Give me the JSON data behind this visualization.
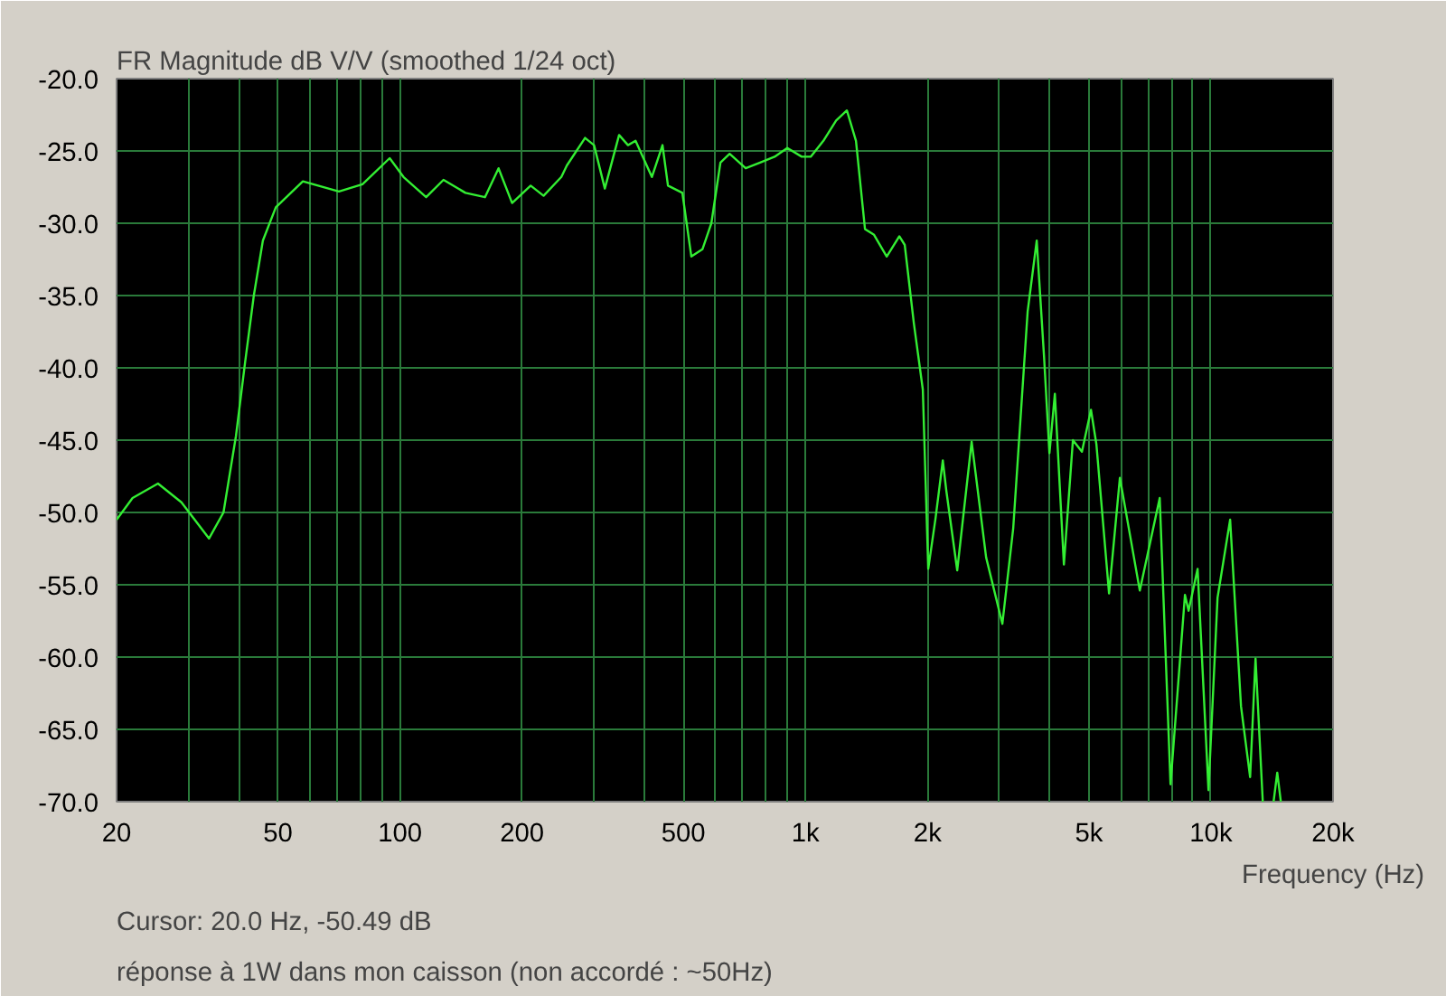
{
  "chart_data": {
    "type": "line",
    "title": "FR Magnitude dB V/V (smoothed 1/24 oct)",
    "xlabel": "Frequency (Hz)",
    "annotations": [
      "Cursor: 20.0 Hz, -50.49 dB",
      "réponse à 1W dans mon caisson (non accordé : ~50Hz)"
    ],
    "log": "x",
    "grid": true,
    "line_style": "solid",
    "marker": "none",
    "xlim": [
      20,
      20000
    ],
    "ylim": [
      -70,
      -20
    ],
    "xticks": [
      {
        "value": 20,
        "label": "20"
      },
      {
        "value": 30,
        "label": null
      },
      {
        "value": 40,
        "label": null
      },
      {
        "value": 50,
        "label": "50"
      },
      {
        "value": 60,
        "label": null
      },
      {
        "value": 70,
        "label": null
      },
      {
        "value": 80,
        "label": null
      },
      {
        "value": 90,
        "label": null
      },
      {
        "value": 100,
        "label": "100"
      },
      {
        "value": 200,
        "label": "200"
      },
      {
        "value": 300,
        "label": null
      },
      {
        "value": 400,
        "label": null
      },
      {
        "value": 500,
        "label": "500"
      },
      {
        "value": 600,
        "label": null
      },
      {
        "value": 700,
        "label": null
      },
      {
        "value": 800,
        "label": null
      },
      {
        "value": 900,
        "label": null
      },
      {
        "value": 1000,
        "label": "1k"
      },
      {
        "value": 2000,
        "label": "2k"
      },
      {
        "value": 3000,
        "label": null
      },
      {
        "value": 4000,
        "label": null
      },
      {
        "value": 5000,
        "label": "5k"
      },
      {
        "value": 6000,
        "label": null
      },
      {
        "value": 7000,
        "label": null
      },
      {
        "value": 8000,
        "label": null
      },
      {
        "value": 9000,
        "label": null
      },
      {
        "value": 10000,
        "label": "10k"
      },
      {
        "value": 20000,
        "label": "20k"
      }
    ],
    "yticks": [
      {
        "value": -20,
        "label": "-20.0"
      },
      {
        "value": -25,
        "label": "-25.0"
      },
      {
        "value": -30,
        "label": "-30.0"
      },
      {
        "value": -35,
        "label": "-35.0"
      },
      {
        "value": -40,
        "label": "-40.0"
      },
      {
        "value": -45,
        "label": "-45.0"
      },
      {
        "value": -50,
        "label": "-50.0"
      },
      {
        "value": -55,
        "label": "-55.0"
      },
      {
        "value": -60,
        "label": "-60.0"
      },
      {
        "value": -65,
        "label": "-65.0"
      },
      {
        "value": -70,
        "label": "-70.0"
      }
    ],
    "series": [
      {
        "color": "#33ee33",
        "x": [
          20,
          21.9,
          25.3,
          28.9,
          33.8,
          36.7,
          39.4,
          41.5,
          43.6,
          45.9,
          49.4,
          57.6,
          70.7,
          80.8,
          94.3,
          102,
          116,
          128,
          145,
          162,
          175,
          189,
          210,
          226,
          250,
          258,
          286,
          301,
          320,
          347,
          365,
          381,
          418,
          444,
          458,
          497,
          523,
          557,
          586,
          617,
          650,
          712,
          773,
          839,
          902,
          979,
          1030,
          1107,
          1190,
          1265,
          1332,
          1402,
          1476,
          1586,
          1704,
          1757,
          1850,
          1947,
          2008,
          2093,
          2181,
          2225,
          2367,
          2569,
          2789,
          3059,
          3253,
          3531,
          3718,
          3875,
          3996,
          4121,
          4338,
          4566,
          4806,
          5059,
          5218,
          5606,
          5962,
          6675,
          7475,
          7948,
          8627,
          8806,
          9269,
          9860,
          10380,
          11150,
          11860,
          12490,
          12880,
          13420,
          13800,
          14270,
          14570,
          14870
        ],
        "values": [
          -50.5,
          -49.0,
          -48.0,
          -49.3,
          -51.8,
          -50.0,
          -44.7,
          -39.6,
          -35.0,
          -31.2,
          -28.9,
          -27.1,
          -27.8,
          -27.3,
          -25.5,
          -26.8,
          -28.2,
          -27.0,
          -27.9,
          -28.2,
          -26.2,
          -28.6,
          -27.4,
          -28.1,
          -26.8,
          -26.0,
          -24.1,
          -24.6,
          -27.6,
          -23.9,
          -24.6,
          -24.3,
          -26.8,
          -24.6,
          -27.4,
          -27.9,
          -32.3,
          -31.8,
          -30.0,
          -25.8,
          -25.2,
          -26.2,
          -25.8,
          -25.4,
          -24.8,
          -25.4,
          -25.4,
          -24.3,
          -22.9,
          -22.2,
          -24.3,
          -30.4,
          -30.8,
          -32.3,
          -30.9,
          -31.5,
          -36.9,
          -41.5,
          -53.9,
          -50.4,
          -46.4,
          -48.5,
          -54.0,
          -45.1,
          -53.1,
          -57.7,
          -51.1,
          -36.1,
          -31.2,
          -39.2,
          -45.9,
          -41.8,
          -53.6,
          -45.0,
          -45.8,
          -42.9,
          -45.3,
          -55.6,
          -47.6,
          -55.4,
          -49.0,
          -68.8,
          -55.7,
          -56.8,
          -53.9,
          -69.2,
          -55.9,
          -50.5,
          -63.4,
          -68.3,
          -60.1,
          -70.0,
          null,
          -70.0,
          -68.0,
          -70.0
        ]
      }
    ]
  }
}
